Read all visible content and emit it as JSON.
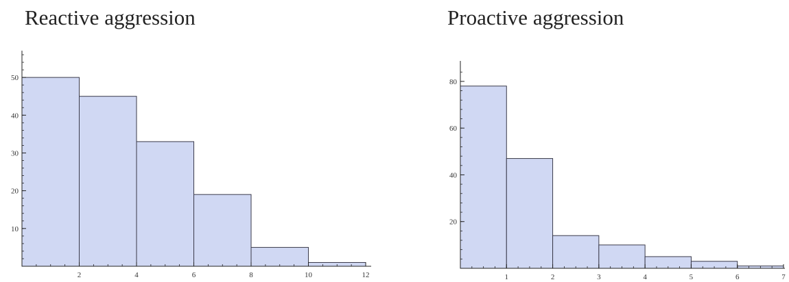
{
  "chart_data": [
    {
      "type": "bar",
      "title": "Reactive aggression",
      "bin_edges": [
        0,
        2,
        4,
        6,
        8,
        10,
        12
      ],
      "values": [
        50,
        45,
        33,
        19,
        5,
        1
      ],
      "xlim": [
        0,
        12
      ],
      "ylim": [
        0,
        56
      ],
      "xticks_major": [
        2,
        4,
        6,
        8,
        10,
        12
      ],
      "yticks_major": [
        10,
        20,
        30,
        40,
        50
      ],
      "grid": false,
      "bar_fill": "#d0d8f3",
      "bar_stroke": "#3a3a4a"
    },
    {
      "type": "bar",
      "title": "Proactive aggression",
      "bin_edges": [
        0,
        1,
        2,
        3,
        4,
        5,
        6,
        7
      ],
      "values": [
        78,
        47,
        14,
        10,
        5,
        3,
        1
      ],
      "xlim": [
        0,
        7
      ],
      "ylim": [
        0,
        87
      ],
      "xticks_major": [
        1,
        2,
        3,
        4,
        5,
        6,
        7
      ],
      "yticks_major": [
        20,
        40,
        60,
        80
      ],
      "grid": false,
      "bar_fill": "#d0d8f3",
      "bar_stroke": "#3a3a4a"
    }
  ]
}
